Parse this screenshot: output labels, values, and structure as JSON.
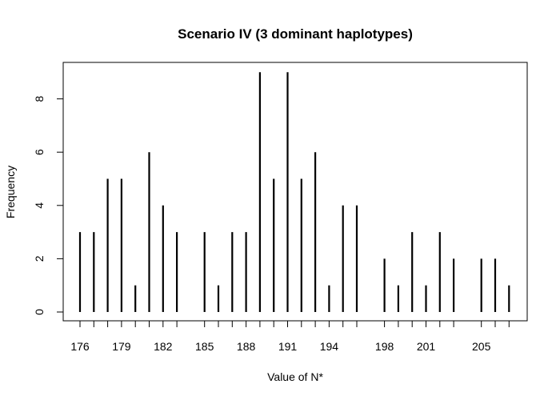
{
  "chart_data": {
    "type": "bar",
    "title": "Scenario IV (3 dominant haplotypes)",
    "xlabel": "Value of N*",
    "ylabel": "Frequency",
    "xlim": [
      175,
      208
    ],
    "ylim": [
      0,
      9
    ],
    "x_tick_labels": [
      "176",
      "179",
      "182",
      "185",
      "188",
      "191",
      "194",
      "198",
      "201",
      "205"
    ],
    "y_ticks": [
      0,
      2,
      4,
      6,
      8
    ],
    "x": [
      176,
      177,
      178,
      179,
      180,
      181,
      182,
      183,
      185,
      186,
      187,
      188,
      189,
      190,
      191,
      192,
      193,
      194,
      195,
      196,
      198,
      199,
      200,
      201,
      202,
      203,
      205,
      206,
      207
    ],
    "values": [
      3,
      3,
      5,
      5,
      1,
      6,
      4,
      3,
      3,
      1,
      3,
      3,
      9,
      5,
      9,
      5,
      6,
      1,
      4,
      4,
      2,
      1,
      3,
      1,
      3,
      2,
      2,
      2,
      1
    ],
    "grid": false,
    "legend": "none"
  }
}
